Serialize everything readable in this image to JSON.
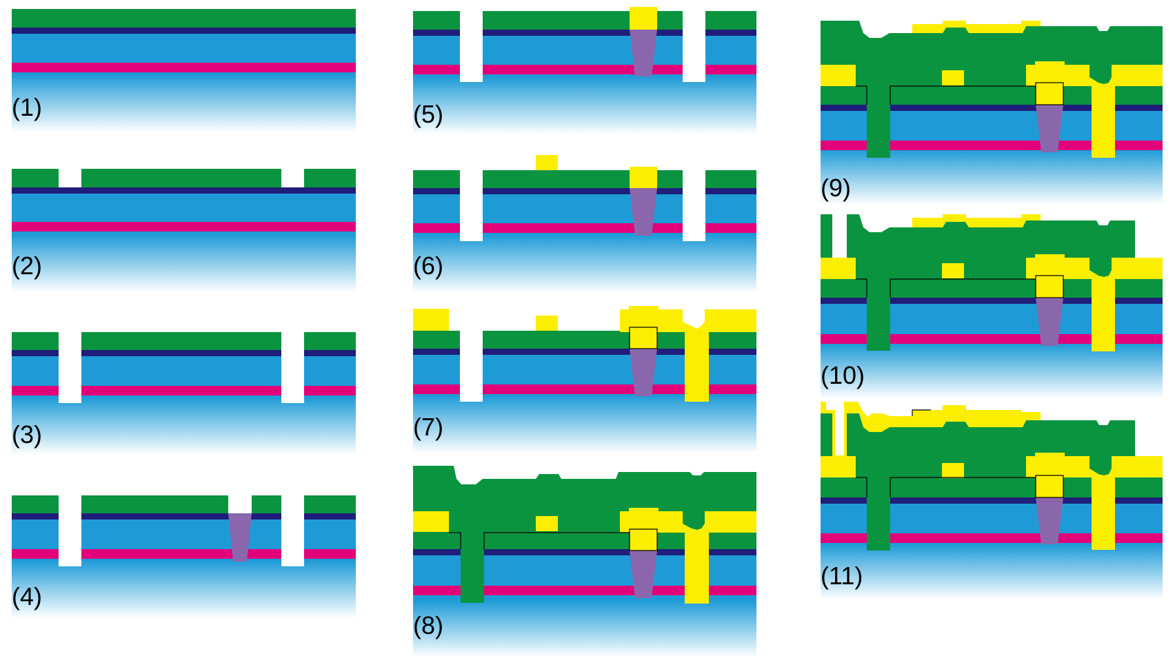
{
  "colors": {
    "substrate": "#1e9bd7",
    "green_layer": "#0b9440",
    "dark_blue_layer": "#1f1e7a",
    "magenta_layer": "#e2007a",
    "yellow_metal": "#fcee00",
    "purple_via": "#8a67ad",
    "outline": "#000000"
  },
  "steps": [
    {
      "label": "(1)"
    },
    {
      "label": "(2)"
    },
    {
      "label": "(3)"
    },
    {
      "label": "(4)"
    },
    {
      "label": "(5)"
    },
    {
      "label": "(6)"
    },
    {
      "label": "(7)"
    },
    {
      "label": "(8)"
    },
    {
      "label": "(9)"
    },
    {
      "label": "(10)"
    },
    {
      "label": "(11)"
    }
  ]
}
